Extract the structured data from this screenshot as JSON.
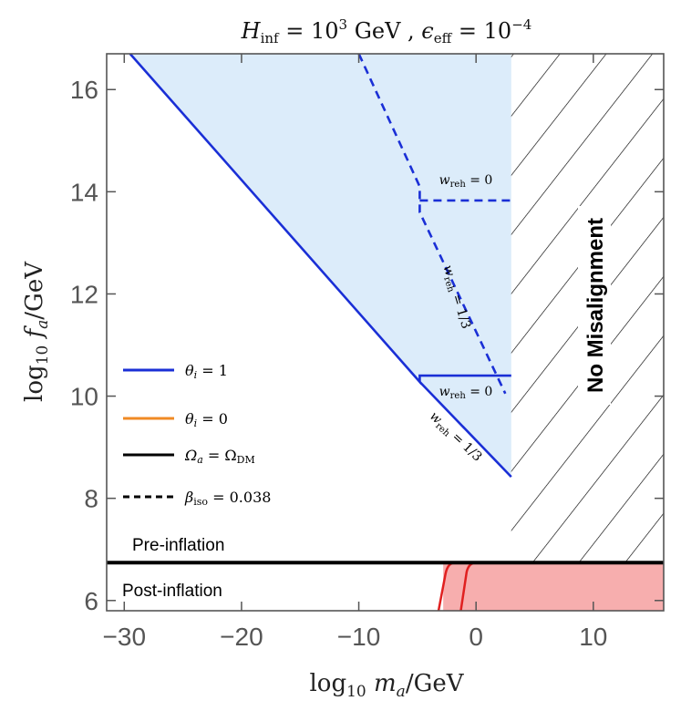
{
  "chart_data": {
    "type": "line",
    "title": "H_inf = 10^3 GeV , ε_eff = 10^-4",
    "xlabel": "log10 m_a/GeV",
    "ylabel": "log10 f_a/GeV",
    "xlim": [
      -31.5,
      16
    ],
    "ylim": [
      5.8,
      16.7
    ],
    "xticks": [
      -30,
      -20,
      -10,
      0,
      10
    ],
    "yticks": [
      6,
      8,
      10,
      12,
      14,
      16
    ],
    "xtick_labels": [
      "−30",
      "−20",
      "−10",
      "0",
      "10"
    ],
    "ytick_labels": [
      "6",
      "8",
      "10",
      "12",
      "14",
      "16"
    ],
    "colors": {
      "theta1": "#1a2fd6",
      "theta0": "#f08a24",
      "omega": "#000000",
      "shade": "#dcecfa",
      "postfill": "#f7aeae",
      "postline": "#e02020"
    },
    "series": [
      {
        "name": "θ_i = 1",
        "style": "solid",
        "color": "#1a2fd6",
        "points": [
          [
            -29.5,
            16.7
          ],
          [
            -4.8,
            10.28
          ],
          [
            -4.8,
            10.4
          ],
          [
            3,
            10.4
          ]
        ]
      },
      {
        "name": "θ_i = 1 (w_reh = 1/3 tail)",
        "style": "solid",
        "color": "#1a2fd6",
        "points": [
          [
            -4.8,
            10.28
          ],
          [
            3,
            8.42
          ]
        ]
      },
      {
        "name": "β_iso = 0.038",
        "style": "dashed",
        "color": "#1a2fd6",
        "points": [
          [
            -10,
            16.7
          ],
          [
            -4.8,
            14.1
          ],
          [
            -4.8,
            13.6
          ],
          [
            2.5,
            10.05
          ]
        ]
      },
      {
        "name": "β_iso = 0.038 (w_reh = 0)",
        "style": "dashed",
        "color": "#1a2fd6",
        "points": [
          [
            -4.8,
            13.83
          ],
          [
            3,
            13.83
          ]
        ]
      },
      {
        "name": "Ω_a = Ω_DM",
        "style": "solid",
        "color": "#000000",
        "points": [
          [
            -31.5,
            6.74
          ],
          [
            16,
            6.74
          ]
        ]
      }
    ],
    "regions": {
      "shaded_upper": {
        "x_max": 3
      },
      "no_misalignment": {
        "x_min": 3
      },
      "postinflation_fill": {
        "x_min": -2.8,
        "x_max": 16,
        "y_max": 6.74
      }
    },
    "annotations": {
      "wreh0_top": "w_reh = 0",
      "wreh13_top": "w_reh = 1/3",
      "wreh0_bottom": "w_reh = 0",
      "wreh13_bottom": "w_reh = 1/3",
      "no_misalignment": "No Misalignment",
      "pre_inflation": "Pre-inflation",
      "post_inflation": "Post-inflation"
    },
    "legend": {
      "placement": "left",
      "entries": [
        {
          "label": "θ_i = 1",
          "color": "#1a2fd6",
          "style": "solid"
        },
        {
          "label": "θ_i = 0",
          "color": "#f08a24",
          "style": "solid"
        },
        {
          "label": "Ω_a = Ω_DM",
          "color": "#000000",
          "style": "solid"
        },
        {
          "label": "β_iso = 0.038",
          "color": "#000000",
          "style": "dashed"
        }
      ]
    }
  }
}
